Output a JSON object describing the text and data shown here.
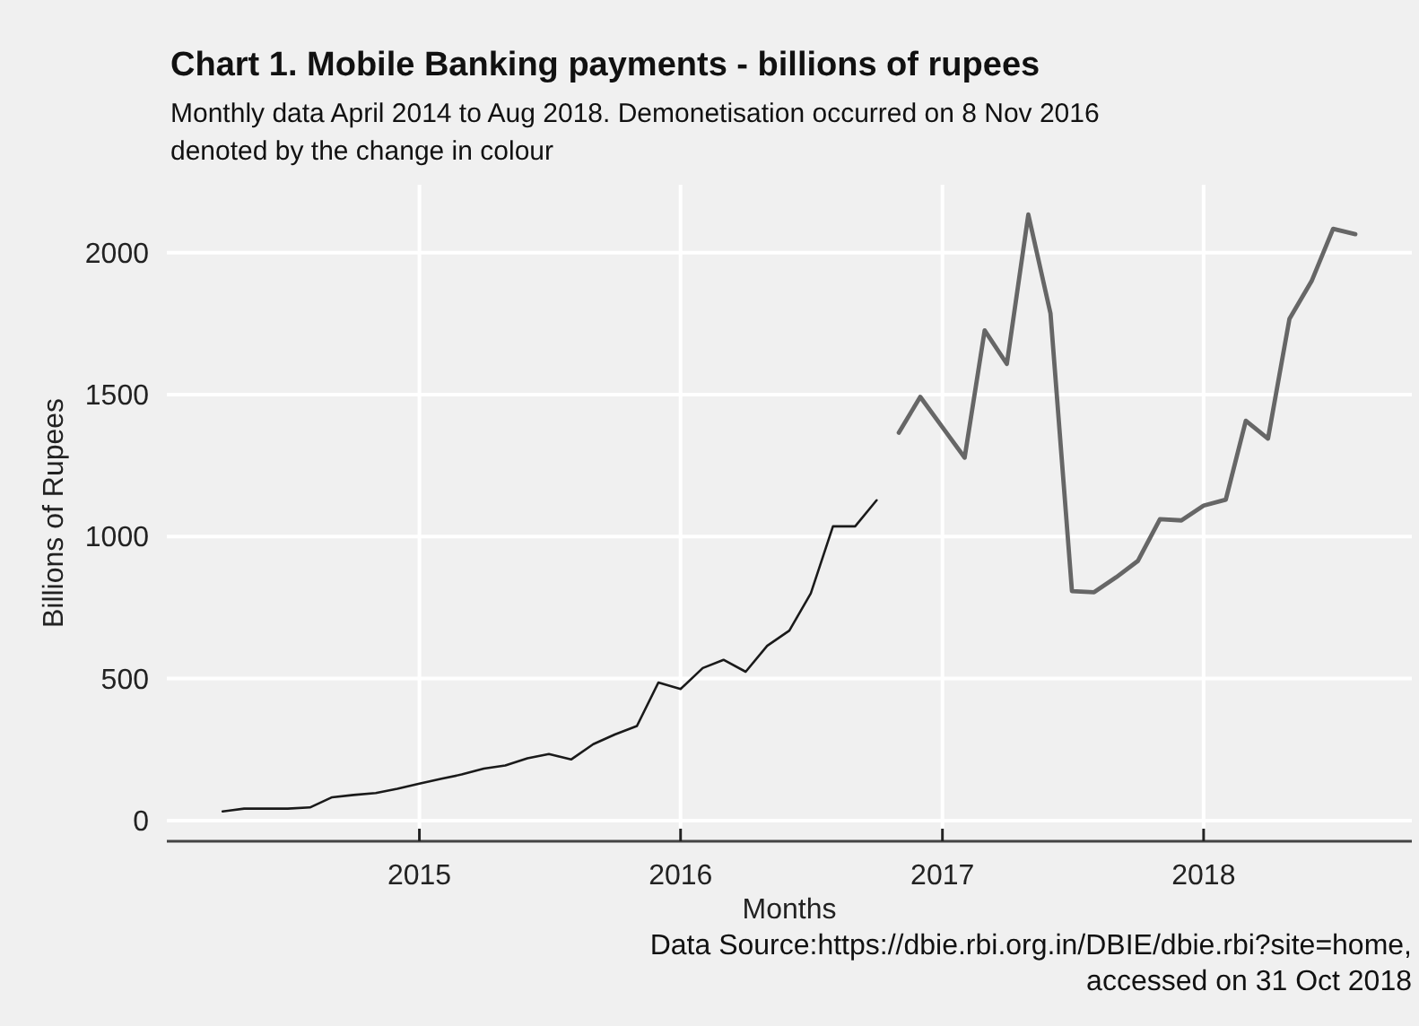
{
  "chart_data": {
    "type": "line",
    "title": "Chart 1. Mobile Banking payments - billions of rupees",
    "subtitle": "Monthly data April 2014 to Aug 2018. Demonetisation occurred on 8 Nov 2016 denoted by the change in colour",
    "xlabel": "Months",
    "ylabel": "Billions of Rupees",
    "annotations": [
      "Data Source:https://dbie.rbi.org.in/DBIE/dbie.rbi?site=home, accessed on 31 Oct 2018"
    ],
    "series": [
      {
        "color": "#1a1a1a",
        "x": [
          "2014-04",
          "2014-05",
          "2014-06",
          "2014-07",
          "2014-08",
          "2014-09",
          "2014-10",
          "2014-11",
          "2014-12",
          "2015-01",
          "2015-02",
          "2015-03",
          "2015-04",
          "2015-05",
          "2015-06",
          "2015-07",
          "2015-08",
          "2015-09",
          "2015-10",
          "2015-11",
          "2015-12",
          "2016-01",
          "2016-02",
          "2016-03",
          "2016-04",
          "2016-05",
          "2016-06",
          "2016-07",
          "2016-08",
          "2016-09",
          "2016-10"
        ],
        "values": [
          32,
          42,
          42,
          42,
          46,
          82,
          90,
          97,
          112,
          130,
          147,
          162,
          183,
          194,
          219,
          234,
          215,
          269,
          303,
          333,
          486,
          463,
          537,
          566,
          524,
          615,
          669,
          800,
          1036,
          1036,
          1128
        ]
      },
      {
        "color": "#666666",
        "x": [
          "2016-11",
          "2016-12",
          "2017-01",
          "2017-02",
          "2017-03",
          "2017-04",
          "2017-05",
          "2017-06",
          "2017-07",
          "2017-08",
          "2017-09",
          "2017-10",
          "2017-11",
          "2017-12",
          "2018-01",
          "2018-02",
          "2018-03",
          "2018-04",
          "2018-05",
          "2018-06",
          "2018-07",
          "2018-08"
        ],
        "values": [
          1366,
          1492,
          1385,
          1278,
          1726,
          1608,
          2134,
          1786,
          808,
          804,
          857,
          914,
          1061,
          1057,
          1109,
          1130,
          1408,
          1345,
          1767,
          1900,
          2084,
          2065
        ]
      }
    ],
    "xlim": [
      "2014-01-13",
      "2018-10-19"
    ],
    "xticks": [
      "2015",
      "2016",
      "2017",
      "2018"
    ],
    "ylim": [
      -73,
      2239
    ],
    "yticks": [
      0,
      500,
      1000,
      1500,
      2000
    ],
    "grid": true,
    "marker": "none",
    "line_style": "solid"
  }
}
